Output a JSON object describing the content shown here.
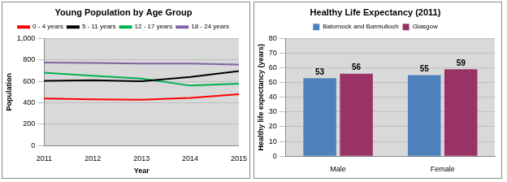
{
  "chart_data": [
    {
      "type": "line",
      "title": "Young Population by Age Group",
      "x_label": "Year",
      "y_label": "Population",
      "categories": [
        "2011",
        "2012",
        "2013",
        "2014",
        "2015"
      ],
      "series": [
        {
          "name": "0 - 4 years",
          "color": "#ff0000",
          "values": [
            440,
            432,
            428,
            445,
            480
          ]
        },
        {
          "name": "5 - 11 years",
          "color": "#000000",
          "values": [
            605,
            610,
            600,
            640,
            695
          ]
        },
        {
          "name": "12 - 17 years",
          "color": "#00b050",
          "values": [
            680,
            652,
            625,
            560,
            578
          ]
        },
        {
          "name": "18 - 24 years",
          "color": "#8064a2",
          "values": [
            775,
            770,
            765,
            765,
            755
          ]
        }
      ],
      "ylim": [
        0,
        1000
      ],
      "yticks": [
        0,
        200,
        400,
        600,
        800,
        {
          "value": 1000,
          "label": "1,000"
        }
      ],
      "grid": true,
      "legend": "top"
    },
    {
      "type": "bar",
      "title": "Healthy Life Expectancy (2011)",
      "y_label": "Healthy life expectancy (years)",
      "categories": [
        "Male",
        "Female"
      ],
      "series": [
        {
          "name": "Balornock and Barmulloch",
          "color": "#4f81bd",
          "values": [
            53,
            55
          ]
        },
        {
          "name": "Glasgow",
          "color": "#993366",
          "values": [
            56,
            59
          ]
        }
      ],
      "ylim": [
        0,
        80
      ],
      "yticks": [
        0,
        10,
        20,
        30,
        40,
        50,
        60,
        70,
        80
      ],
      "grid": true,
      "legend": "top",
      "data_labels": true
    }
  ]
}
